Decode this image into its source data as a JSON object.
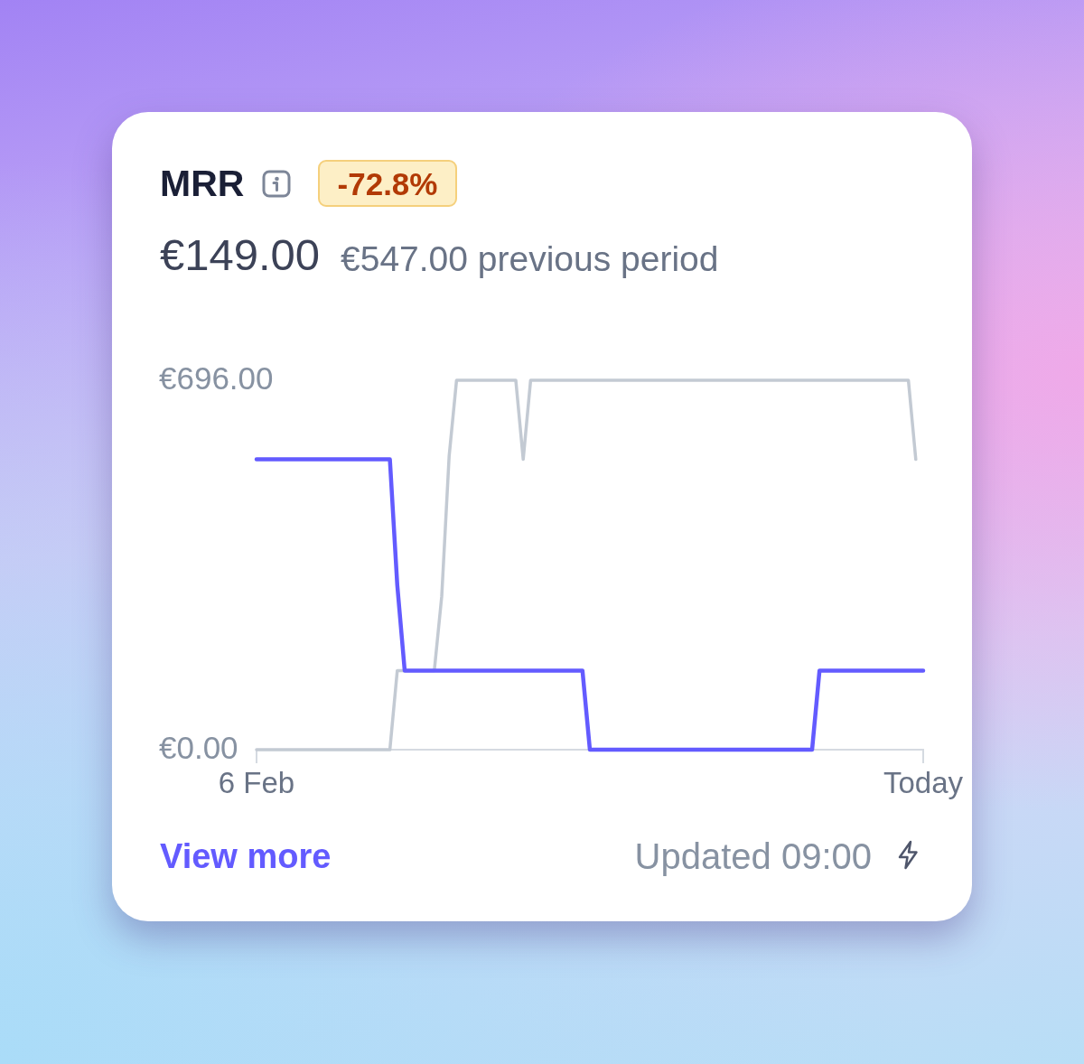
{
  "chart_data": {
    "type": "line",
    "title": "MRR",
    "annotations": [
      "-72.8%",
      "€149.00",
      "€547.00 previous period",
      "View more",
      "Updated 09:00"
    ],
    "categories": [
      "6 Feb",
      null,
      null,
      null,
      null,
      null,
      null,
      null,
      null,
      null,
      null,
      null,
      null,
      null,
      null,
      null,
      null,
      null,
      null,
      null,
      null,
      null,
      null,
      null,
      null,
      null,
      null,
      null,
      null,
      null,
      null,
      null,
      null,
      null,
      null,
      null,
      null,
      null,
      null,
      null,
      null,
      null,
      null,
      null,
      null,
      null,
      null,
      null,
      null,
      null,
      null,
      null,
      null,
      null,
      null,
      null,
      null,
      null,
      null,
      null,
      null,
      null,
      null,
      null,
      null,
      null,
      null,
      null,
      null,
      null,
      null,
      null,
      null,
      null,
      null,
      null,
      null,
      null,
      null,
      null,
      null,
      null,
      null,
      null,
      null,
      null,
      null,
      null,
      null,
      null,
      "Today"
    ],
    "series": [
      {
        "color": "#635bff",
        "values": [
          547,
          547,
          547,
          547,
          547,
          547,
          547,
          547,
          547,
          547,
          547,
          547,
          547,
          547,
          547,
          547,
          547,
          547,
          547,
          310,
          149,
          149,
          149,
          149,
          149,
          149,
          149,
          149,
          149,
          149,
          149,
          149,
          149,
          149,
          149,
          149,
          149,
          149,
          149,
          149,
          149,
          149,
          149,
          149,
          149,
          0,
          0,
          0,
          0,
          0,
          0,
          0,
          0,
          0,
          0,
          0,
          0,
          0,
          0,
          0,
          0,
          0,
          0,
          0,
          0,
          0,
          0,
          0,
          0,
          0,
          0,
          0,
          0,
          0,
          0,
          0,
          149,
          149,
          149,
          149,
          149,
          149,
          149,
          149,
          149,
          149,
          149,
          149,
          149,
          149,
          149
        ]
      },
      {
        "color": "#c3cad3",
        "values": [
          0,
          0,
          0,
          0,
          0,
          0,
          0,
          0,
          0,
          0,
          0,
          0,
          0,
          0,
          0,
          0,
          0,
          0,
          0,
          149,
          149,
          149,
          149,
          149,
          149,
          289,
          553,
          696,
          696,
          696,
          696,
          696,
          696,
          696,
          696,
          696,
          547,
          696,
          696,
          696,
          696,
          696,
          696,
          696,
          696,
          696,
          696,
          696,
          696,
          696,
          696,
          696,
          696,
          696,
          696,
          696,
          696,
          696,
          696,
          696,
          696,
          696,
          696,
          696,
          696,
          696,
          696,
          696,
          696,
          696,
          696,
          696,
          696,
          696,
          696,
          696,
          696,
          696,
          696,
          696,
          696,
          696,
          696,
          696,
          696,
          696,
          696,
          696,
          696,
          547,
          null
        ]
      }
    ],
    "ylim": [
      0,
      696
    ],
    "yticks": [
      {
        "value": 0,
        "label": "€0.00"
      },
      {
        "value": 696,
        "label": "€696.00"
      }
    ],
    "legend": false,
    "marker": "none",
    "line_style": "solid"
  }
}
